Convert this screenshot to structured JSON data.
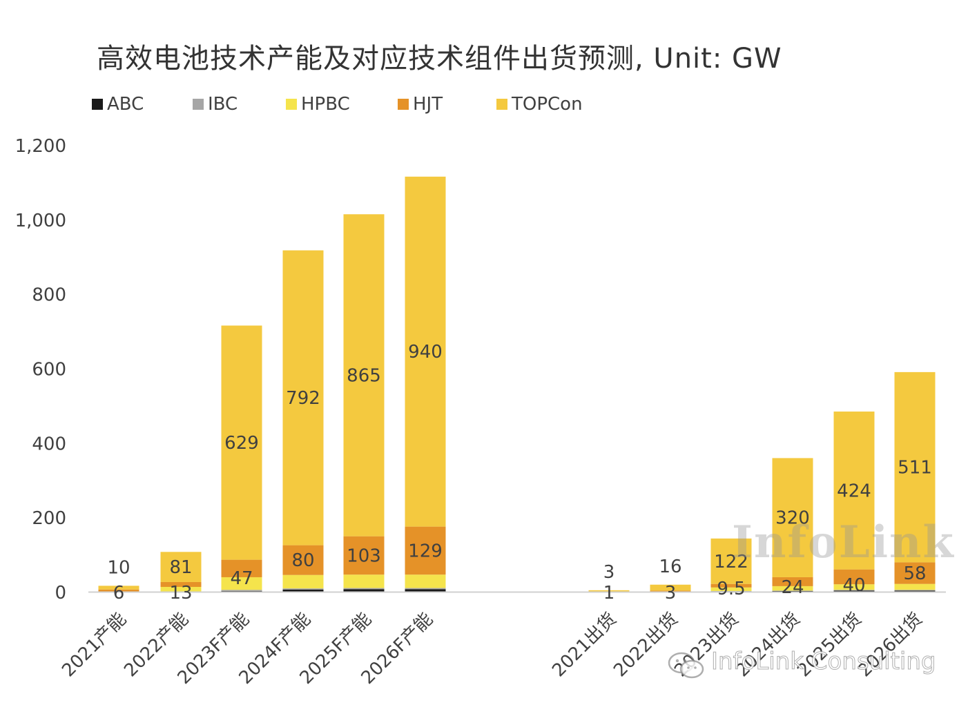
{
  "chart_data": {
    "type": "bar",
    "stacked": true,
    "title": "高效电池技术产能及对应技术组件出货预测, Unit: GW",
    "ylim": [
      0,
      1200
    ],
    "yticks": [
      "0",
      "200",
      "400",
      "600",
      "800",
      "1,000",
      "1,200"
    ],
    "ytick_values": [
      0,
      200,
      400,
      600,
      800,
      1000,
      1200
    ],
    "grid": false,
    "legend_position": "top-left",
    "categories": [
      "2021产能",
      "2022产能",
      "2023F产能",
      "2024F产能",
      "2025F产能",
      "2026F产能",
      "2021出货",
      "2022出货",
      "2023出货",
      "2024出货",
      "2025出货",
      "2026出货"
    ],
    "series": [
      {
        "name": "ABC",
        "color": "#1a1a1a",
        "values": [
          0,
          0,
          2,
          6,
          7,
          7,
          0,
          0,
          1,
          2,
          3,
          3
        ]
      },
      {
        "name": "IBC",
        "color": "#a6a6a6",
        "values": [
          0,
          0,
          3,
          3,
          3,
          3,
          0,
          0,
          1,
          1,
          2,
          2
        ]
      },
      {
        "name": "HPBC",
        "color": "#f5e44c",
        "values": [
          0,
          13,
          34,
          36,
          36,
          36,
          0,
          0,
          9.5,
          12,
          15,
          16
        ]
      },
      {
        "name": "HJT",
        "color": "#e59228",
        "values": [
          6,
          13,
          47,
          80,
          103,
          129,
          1,
          3,
          9.5,
          24,
          40,
          58
        ]
      },
      {
        "name": "TOPCon",
        "color": "#f4c93f",
        "values": [
          10,
          81,
          629,
          792,
          865,
          940,
          3,
          16,
          122,
          320,
          424,
          511
        ]
      }
    ],
    "data_labels": [
      {
        "category": 0,
        "series": "HJT",
        "text": "6"
      },
      {
        "category": 0,
        "series": "TOPCon",
        "text": "10"
      },
      {
        "category": 1,
        "series": "HPBC",
        "text": "13"
      },
      {
        "category": 1,
        "series": "TOPCon",
        "text": "81"
      },
      {
        "category": 2,
        "series": "HJT",
        "text": "47"
      },
      {
        "category": 2,
        "series": "TOPCon",
        "text": "629"
      },
      {
        "category": 3,
        "series": "HJT",
        "text": "80"
      },
      {
        "category": 3,
        "series": "TOPCon",
        "text": "792"
      },
      {
        "category": 4,
        "series": "HJT",
        "text": "103"
      },
      {
        "category": 4,
        "series": "TOPCon",
        "text": "865"
      },
      {
        "category": 5,
        "series": "HJT",
        "text": "129"
      },
      {
        "category": 5,
        "series": "TOPCon",
        "text": "940"
      },
      {
        "category": 6,
        "series": "HJT",
        "text": "1"
      },
      {
        "category": 6,
        "series": "TOPCon",
        "text": "3"
      },
      {
        "category": 7,
        "series": "HJT",
        "text": "3"
      },
      {
        "category": 7,
        "series": "TOPCon",
        "text": "16"
      },
      {
        "category": 8,
        "series": "HJT",
        "text": "9.5"
      },
      {
        "category": 8,
        "series": "TOPCon",
        "text": "122"
      },
      {
        "category": 9,
        "series": "HJT",
        "text": "24"
      },
      {
        "category": 9,
        "series": "TOPCon",
        "text": "320"
      },
      {
        "category": 10,
        "series": "HJT",
        "text": "40"
      },
      {
        "category": 10,
        "series": "TOPCon",
        "text": "424"
      },
      {
        "category": 11,
        "series": "HJT",
        "text": "58"
      },
      {
        "category": 11,
        "series": "TOPCon",
        "text": "511"
      }
    ]
  },
  "watermark": {
    "main": "InfoLink",
    "sub": "InfoLink Consulting",
    "icon": "wechat-icon"
  }
}
